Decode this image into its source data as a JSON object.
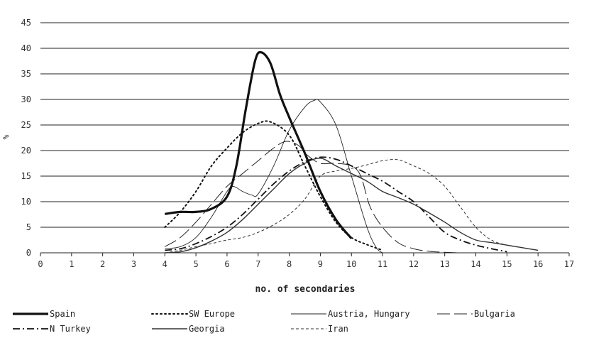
{
  "chart_data": {
    "type": "line",
    "xlabel": "no. of secondaries",
    "ylabel": "%",
    "xlim": [
      0,
      17
    ],
    "ylim": [
      0,
      45
    ],
    "x_ticks": [
      0,
      1,
      2,
      3,
      4,
      5,
      6,
      7,
      8,
      9,
      10,
      11,
      12,
      13,
      14,
      15,
      16,
      17
    ],
    "y_ticks": [
      0,
      5,
      10,
      15,
      20,
      25,
      30,
      35,
      40,
      45
    ],
    "grid": "horizontal",
    "legend_position": "bottom",
    "series": [
      {
        "name": "Spain",
        "style": "thick-solid",
        "color": "#111111",
        "points": [
          [
            4,
            7.6
          ],
          [
            4.5,
            8.0
          ],
          [
            5,
            8.0
          ],
          [
            5.5,
            8.6
          ],
          [
            6,
            11
          ],
          [
            6.3,
            17
          ],
          [
            6.6,
            28
          ],
          [
            6.9,
            37.5
          ],
          [
            7.1,
            39.2
          ],
          [
            7.4,
            37
          ],
          [
            7.7,
            31
          ],
          [
            8,
            26.5
          ],
          [
            8.5,
            19.5
          ],
          [
            9,
            12
          ],
          [
            9.5,
            6.5
          ],
          [
            10,
            2.8
          ]
        ]
      },
      {
        "name": "SW Europe",
        "style": "dotted",
        "color": "#111111",
        "points": [
          [
            4,
            5
          ],
          [
            4.5,
            8
          ],
          [
            5,
            12
          ],
          [
            5.5,
            17
          ],
          [
            6,
            20.5
          ],
          [
            6.5,
            23.5
          ],
          [
            7,
            25.3
          ],
          [
            7.4,
            25.6
          ],
          [
            8,
            23
          ],
          [
            8.5,
            17
          ],
          [
            9,
            11
          ],
          [
            9.5,
            6
          ],
          [
            10,
            3
          ],
          [
            10.5,
            1.6
          ],
          [
            11,
            0.5
          ]
        ]
      },
      {
        "name": "Austria, Hungary",
        "style": "thin-solid",
        "color": "#222222",
        "points": [
          [
            4,
            0.8
          ],
          [
            4.5,
            1.2
          ],
          [
            5,
            3
          ],
          [
            5.5,
            7
          ],
          [
            6,
            12
          ],
          [
            6.2,
            13
          ],
          [
            6.5,
            12
          ],
          [
            6.8,
            11.3
          ],
          [
            7,
            11.5
          ],
          [
            7.5,
            17
          ],
          [
            8,
            24
          ],
          [
            8.5,
            28.5
          ],
          [
            8.8,
            29.8
          ],
          [
            9,
            29.5
          ],
          [
            9.5,
            25
          ],
          [
            10,
            15
          ],
          [
            10.5,
            5
          ],
          [
            10.8,
            1
          ],
          [
            11,
            0
          ]
        ]
      },
      {
        "name": "Bulgaria",
        "style": "long-dash",
        "color": "#222222",
        "points": [
          [
            4,
            1.2
          ],
          [
            4.5,
            3
          ],
          [
            5,
            6
          ],
          [
            5.5,
            9.5
          ],
          [
            6,
            13
          ],
          [
            6.5,
            15.5
          ],
          [
            7,
            18
          ],
          [
            7.5,
            20.5
          ],
          [
            7.9,
            21.8
          ],
          [
            8.3,
            21
          ],
          [
            8.6,
            19
          ],
          [
            9,
            17.5
          ],
          [
            9.5,
            17.5
          ],
          [
            10,
            17
          ],
          [
            10.3,
            15
          ],
          [
            10.6,
            9
          ],
          [
            11,
            5
          ],
          [
            11.5,
            2
          ],
          [
            12,
            0.8
          ],
          [
            12.5,
            0.3
          ],
          [
            13,
            0.1
          ],
          [
            13.5,
            0
          ]
        ]
      },
      {
        "name": "N Turkey",
        "style": "dash-dot",
        "color": "#111111",
        "points": [
          [
            4,
            0.5
          ],
          [
            4.5,
            0.8
          ],
          [
            5,
            1.8
          ],
          [
            5.5,
            3.2
          ],
          [
            6,
            5
          ],
          [
            6.5,
            7.5
          ],
          [
            7,
            10.5
          ],
          [
            7.5,
            13.5
          ],
          [
            8,
            16
          ],
          [
            8.5,
            17.8
          ],
          [
            9,
            18.7
          ],
          [
            9.5,
            18.3
          ],
          [
            10,
            17
          ],
          [
            10.5,
            15.5
          ],
          [
            11,
            14
          ],
          [
            11.5,
            12
          ],
          [
            12,
            10
          ],
          [
            12.5,
            7
          ],
          [
            13,
            4
          ],
          [
            13.5,
            2.5
          ],
          [
            14,
            1.5
          ],
          [
            14.5,
            0.8
          ],
          [
            15,
            0.2
          ]
        ]
      },
      {
        "name": "Georgia",
        "style": "solid",
        "color": "#333333",
        "points": [
          [
            4,
            0
          ],
          [
            4.5,
            0.2
          ],
          [
            5,
            1
          ],
          [
            5.5,
            2.3
          ],
          [
            6,
            4
          ],
          [
            6.5,
            6.5
          ],
          [
            7,
            9.5
          ],
          [
            7.5,
            12.5
          ],
          [
            8,
            15.5
          ],
          [
            8.5,
            17.5
          ],
          [
            9,
            18.5
          ],
          [
            9.5,
            17
          ],
          [
            10,
            15.5
          ],
          [
            10.5,
            14
          ],
          [
            11,
            12
          ],
          [
            11.5,
            10.8
          ],
          [
            12,
            9.5
          ],
          [
            12.5,
            7.8
          ],
          [
            13,
            6
          ],
          [
            13.5,
            4
          ],
          [
            14,
            2.5
          ],
          [
            14.5,
            2
          ],
          [
            15,
            1.5
          ],
          [
            15.5,
            1
          ],
          [
            16,
            0.5
          ]
        ]
      },
      {
        "name": "Iran",
        "style": "short-dash",
        "color": "#333333",
        "points": [
          [
            4,
            0
          ],
          [
            4.5,
            0.5
          ],
          [
            5,
            1.2
          ],
          [
            5.5,
            1.8
          ],
          [
            6,
            2.5
          ],
          [
            6.5,
            3
          ],
          [
            7,
            4
          ],
          [
            7.5,
            5.5
          ],
          [
            8,
            7.5
          ],
          [
            8.5,
            10.5
          ],
          [
            9,
            15
          ],
          [
            9.5,
            16
          ],
          [
            10,
            16.5
          ],
          [
            10.5,
            17.2
          ],
          [
            11,
            18
          ],
          [
            11.5,
            18.2
          ],
          [
            12,
            17
          ],
          [
            12.5,
            15.5
          ],
          [
            13,
            13
          ],
          [
            13.5,
            9
          ],
          [
            14,
            5
          ],
          [
            14.5,
            2.5
          ],
          [
            15,
            1.5
          ],
          [
            15.5,
            1
          ],
          [
            16,
            0.5
          ]
        ]
      }
    ]
  }
}
